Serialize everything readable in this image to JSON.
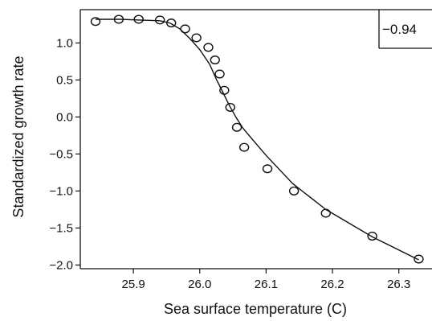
{
  "chart_data": {
    "type": "scatter",
    "title": "",
    "xlabel": "Sea surface temperature (C)",
    "ylabel": "Standardized growth rate",
    "xlim": [
      25.82,
      26.35
    ],
    "ylim": [
      -2.05,
      1.45
    ],
    "x_ticks": [
      25.9,
      26.0,
      26.1,
      26.2,
      26.3
    ],
    "x_tick_labels": [
      "25.9",
      "26.0",
      "26.1",
      "26.2",
      "26.3"
    ],
    "y_ticks": [
      1.0,
      0.5,
      0.0,
      -0.5,
      -1.0,
      -1.5,
      -2.0
    ],
    "y_tick_labels": [
      "1.0",
      "0.5",
      "0.0",
      "−0.5",
      "−1.0",
      "−1.5",
      "−2.0"
    ],
    "grid": false,
    "annotation": "−0.94",
    "series": [
      {
        "kind": "points",
        "x": [
          25.843,
          25.878,
          25.908,
          25.94,
          25.957,
          25.978,
          25.995,
          26.013,
          26.023,
          26.03,
          26.037,
          26.046,
          26.056,
          26.067,
          26.102,
          26.142,
          26.19,
          26.26,
          26.33
        ],
        "y": [
          1.29,
          1.32,
          1.32,
          1.31,
          1.27,
          1.19,
          1.07,
          0.94,
          0.77,
          0.58,
          0.36,
          0.13,
          -0.14,
          -0.41,
          -0.7,
          -1.0,
          -1.3,
          -1.61,
          -1.92
        ]
      },
      {
        "kind": "fit-line",
        "x": [
          25.843,
          25.88,
          25.91,
          25.94,
          25.955,
          25.97,
          25.985,
          26.0,
          26.015,
          26.025,
          26.035,
          26.045,
          26.055,
          26.065,
          26.08,
          26.1,
          26.14,
          26.19,
          26.26,
          26.33
        ],
        "y": [
          1.32,
          1.32,
          1.31,
          1.3,
          1.27,
          1.19,
          1.06,
          0.91,
          0.71,
          0.51,
          0.33,
          0.15,
          -0.01,
          -0.15,
          -0.31,
          -0.52,
          -0.9,
          -1.25,
          -1.62,
          -1.93
        ]
      }
    ]
  }
}
